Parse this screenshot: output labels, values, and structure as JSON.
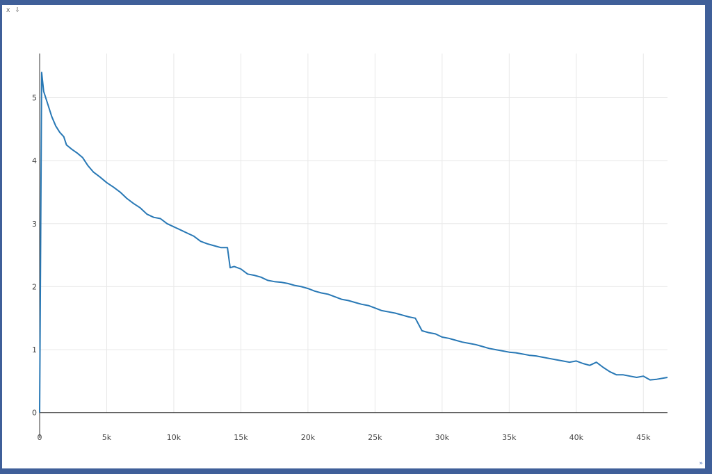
{
  "toolbar": {
    "close_label": "x",
    "menu_label": "⇩",
    "expand_label": "»"
  },
  "colors": {
    "line": "#2878b5",
    "grid": "#e8e8e8",
    "axis": "#333333"
  },
  "chart_data": {
    "type": "line",
    "title": "",
    "xlabel": "",
    "ylabel": "",
    "xlim": [
      0,
      46800
    ],
    "ylim": [
      -0.4,
      5.7
    ],
    "xticks": [
      0,
      5000,
      10000,
      15000,
      20000,
      25000,
      30000,
      35000,
      40000,
      45000
    ],
    "xtick_labels": [
      "0",
      "5k",
      "10k",
      "15k",
      "20k",
      "25k",
      "30k",
      "35k",
      "40k",
      "45k"
    ],
    "yticks": [
      0,
      1,
      2,
      3,
      4,
      5
    ],
    "ytick_labels": [
      "0",
      "1",
      "2",
      "3",
      "4",
      "5"
    ],
    "grid": true,
    "series": [
      {
        "name": "",
        "x": [
          0,
          150,
          300,
          600,
          900,
          1200,
          1500,
          1800,
          2000,
          2400,
          2800,
          3200,
          3600,
          4000,
          4500,
          5000,
          5500,
          6000,
          6500,
          7000,
          7500,
          8000,
          8500,
          9000,
          9500,
          10000,
          10500,
          11000,
          11500,
          12000,
          12500,
          13000,
          13500,
          14000,
          14200,
          14500,
          15000,
          15500,
          16000,
          16500,
          17000,
          17500,
          18000,
          18500,
          19000,
          19500,
          20000,
          20500,
          21000,
          21500,
          22000,
          22500,
          23000,
          23500,
          24000,
          24500,
          25000,
          25500,
          26000,
          26500,
          27000,
          27500,
          28000,
          28500,
          29000,
          29500,
          30000,
          30500,
          31000,
          31500,
          32000,
          32500,
          33000,
          33500,
          34000,
          34500,
          35000,
          35500,
          36000,
          36500,
          37000,
          37500,
          38000,
          38500,
          39000,
          39500,
          40000,
          40500,
          41000,
          41500,
          42000,
          42500,
          43000,
          43500,
          44000,
          44500,
          45000,
          45500,
          46000,
          46800
        ],
        "y": [
          0,
          5.4,
          5.1,
          4.9,
          4.7,
          4.55,
          4.45,
          4.38,
          4.25,
          4.18,
          4.12,
          4.05,
          3.92,
          3.82,
          3.74,
          3.65,
          3.58,
          3.5,
          3.4,
          3.32,
          3.25,
          3.15,
          3.1,
          3.08,
          3.0,
          2.95,
          2.9,
          2.85,
          2.8,
          2.72,
          2.68,
          2.65,
          2.62,
          2.62,
          2.3,
          2.32,
          2.28,
          2.2,
          2.18,
          2.15,
          2.1,
          2.08,
          2.07,
          2.05,
          2.02,
          2.0,
          1.97,
          1.93,
          1.9,
          1.88,
          1.84,
          1.8,
          1.78,
          1.75,
          1.72,
          1.7,
          1.66,
          1.62,
          1.6,
          1.58,
          1.55,
          1.52,
          1.5,
          1.3,
          1.27,
          1.25,
          1.2,
          1.18,
          1.15,
          1.12,
          1.1,
          1.08,
          1.05,
          1.02,
          1.0,
          0.98,
          0.96,
          0.95,
          0.93,
          0.91,
          0.9,
          0.88,
          0.86,
          0.84,
          0.82,
          0.8,
          0.82,
          0.78,
          0.75,
          0.8,
          0.72,
          0.65,
          0.6,
          0.6,
          0.58,
          0.56,
          0.58,
          0.52,
          0.53,
          0.56
        ]
      }
    ]
  }
}
